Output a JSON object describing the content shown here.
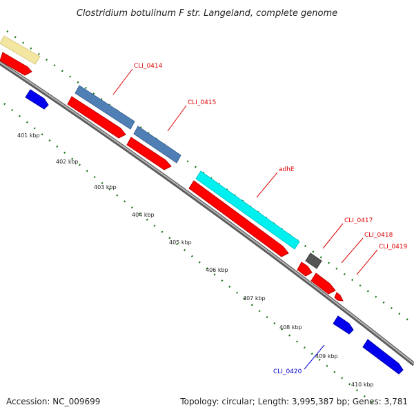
{
  "title": "Clostridium botulinum F str. Langeland, complete genome",
  "footer": {
    "accession": "Accession: NC_009699",
    "summary": "Topology: circular; Length: 3,995,387 bp; Genes: 3,781"
  },
  "ticks": [
    "401 kbp",
    "402 kbp",
    "403 kbp",
    "404 kbp",
    "405 kbp",
    "406 kbp",
    "407 kbp",
    "408 kbp",
    "409 kbp",
    "410 kbp"
  ],
  "gene_labels": [
    {
      "id": "cli-0414",
      "text": "CLI_0414",
      "color": "#e00000"
    },
    {
      "id": "cli-0415",
      "text": "CLI_0415",
      "color": "#e00000"
    },
    {
      "id": "adhe",
      "text": "adhE",
      "color": "#e00000"
    },
    {
      "id": "cli-0417",
      "text": "CLI_0417",
      "color": "#e00000"
    },
    {
      "id": "cli-0418",
      "text": "CLI_0418",
      "color": "#e00000"
    },
    {
      "id": "cli-0419",
      "text": "CLI_0419",
      "color": "#e00000"
    },
    {
      "id": "cli-0420",
      "text": "CLI_0420",
      "color": "#0000cc"
    }
  ],
  "colors": {
    "backbone": "#8a8a8a",
    "cds": "#ff0000",
    "reverse_cds": "#0000ee",
    "cog_blue": "#4f7fb5",
    "cog_cyan": "#00f0f0",
    "cog_yellow": "#f3e6a0",
    "cog_gray": "#555555",
    "tick": "#1a7a1a"
  }
}
